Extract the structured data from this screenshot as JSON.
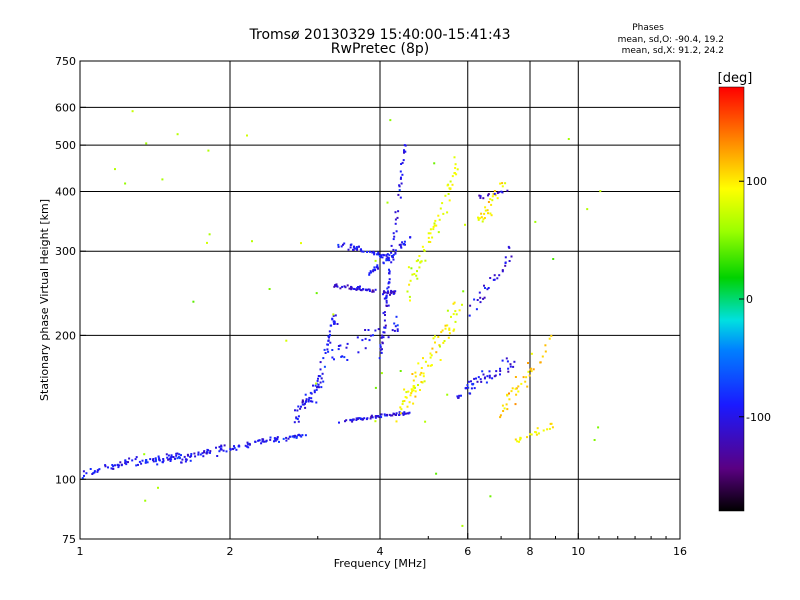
{
  "chart_data": {
    "type": "scatter",
    "title": "Tromsø 20130329 15:40:00-15:41:43",
    "subtitle": "RwPretec (8p)",
    "xlabel": "Frequency [MHz]",
    "ylabel": "Stationary phase Virtual Height [km]",
    "x_scale": "log",
    "y_scale": "log",
    "xlim": [
      1,
      16
    ],
    "ylim": [
      75,
      750
    ],
    "x_ticks": [
      1,
      2,
      4,
      6,
      8,
      10,
      16
    ],
    "y_ticks": [
      75,
      100,
      200,
      300,
      400,
      500,
      600,
      750
    ],
    "x_grid": [
      2,
      4,
      6,
      8,
      10
    ],
    "y_grid": [
      100,
      200,
      300,
      400,
      500,
      600
    ],
    "grid": true,
    "phases_box": {
      "title": "Phases",
      "line1": "mean, sd,O: -90.4, 19.2",
      "line2": "mean, sd,X:  91.2, 24.2"
    },
    "colorbar": {
      "label": "[deg]",
      "range": [
        -180,
        180
      ],
      "ticks": [
        100,
        0,
        -100
      ],
      "tick_labels": [
        "100",
        "0",
        "-100"
      ]
    },
    "series": [
      {
        "name": "O",
        "phase_mean": -90.4,
        "phase_sd": 19.2
      },
      {
        "name": "X",
        "phase_mean": 91.2,
        "phase_sd": 24.2
      }
    ],
    "traces": [
      {
        "f": [
          1.0,
          1.3
        ],
        "h": [
          102,
          110
        ],
        "phase": -95,
        "count": 40,
        "f_spread": 0.01,
        "h_spread": 0.025
      },
      {
        "f": [
          1.3,
          1.6
        ],
        "h": [
          108,
          112
        ],
        "phase": -90,
        "count": 50,
        "f_spread": 0.01,
        "h_spread": 0.025
      },
      {
        "f": [
          1.6,
          1.95
        ],
        "h": [
          110,
          116
        ],
        "phase": -100,
        "count": 40,
        "f_spread": 0.01,
        "h_spread": 0.03
      },
      {
        "f": [
          1.95,
          2.5
        ],
        "h": [
          115,
          122
        ],
        "phase": -95,
        "count": 45,
        "f_spread": 0.008,
        "h_spread": 0.02
      },
      {
        "f": [
          2.5,
          2.85
        ],
        "h": [
          120,
          125
        ],
        "phase": -90,
        "count": 20,
        "f_spread": 0.006,
        "h_spread": 0.015
      },
      {
        "f": [
          2.7,
          3.05
        ],
        "h": [
          135,
          160
        ],
        "phase": -100,
        "count": 45,
        "f_spread": 0.02,
        "h_spread": 0.06
      },
      {
        "f": [
          3.0,
          3.25
        ],
        "h": [
          160,
          220
        ],
        "phase": -95,
        "count": 35,
        "f_spread": 0.02,
        "h_spread": 0.06
      },
      {
        "f": [
          3.3,
          4.6
        ],
        "h": [
          132,
          138
        ],
        "phase": -100,
        "count": 60,
        "f_spread": 0.004,
        "h_spread": 0.012
      },
      {
        "f": [
          3.2,
          4.3
        ],
        "h": [
          255,
          245
        ],
        "phase": -110,
        "count": 60,
        "f_spread": 0.004,
        "h_spread": 0.015
      },
      {
        "f": [
          3.3,
          4.3
        ],
        "h": [
          310,
          290
        ],
        "phase": -95,
        "count": 50,
        "f_spread": 0.005,
        "h_spread": 0.02
      },
      {
        "f": [
          3.7,
          4.6
        ],
        "h": [
          260,
          320
        ],
        "phase": -90,
        "count": 40,
        "f_spread": 0.005,
        "h_spread": 0.02
      },
      {
        "f": [
          3.2,
          4.4
        ],
        "h": [
          180,
          210
        ],
        "phase": -95,
        "count": 40,
        "f_spread": 0.03,
        "h_spread": 0.08
      },
      {
        "f": [
          4.0,
          4.5
        ],
        "h": [
          180,
          520
        ],
        "phase": -100,
        "count": 70,
        "f_spread": 0.012,
        "h_spread": 0.05
      },
      {
        "f": [
          4.4,
          5.8
        ],
        "h": [
          140,
          230
        ],
        "phase": 95,
        "count": 80,
        "f_spread": 0.03,
        "h_spread": 0.1
      },
      {
        "f": [
          4.5,
          5.8
        ],
        "h": [
          240,
          460
        ],
        "phase": 85,
        "count": 60,
        "f_spread": 0.025,
        "h_spread": 0.1
      },
      {
        "f": [
          5.7,
          7.4
        ],
        "h": [
          150,
          175
        ],
        "phase": -100,
        "count": 50,
        "f_spread": 0.02,
        "h_spread": 0.06
      },
      {
        "f": [
          6.2,
          7.2
        ],
        "h": [
          340,
          420
        ],
        "phase": 95,
        "count": 30,
        "f_spread": 0.02,
        "h_spread": 0.07
      },
      {
        "f": [
          6.3,
          7.2
        ],
        "h": [
          390,
          400
        ],
        "phase": -120,
        "count": 12,
        "f_spread": 0.01,
        "h_spread": 0.02
      },
      {
        "f": [
          7.0,
          8.8
        ],
        "h": [
          140,
          195
        ],
        "phase": 110,
        "count": 40,
        "f_spread": 0.02,
        "h_spread": 0.08
      },
      {
        "f": [
          6.0,
          7.4
        ],
        "h": [
          220,
          300
        ],
        "phase": -105,
        "count": 30,
        "f_spread": 0.02,
        "h_spread": 0.07
      },
      {
        "f": [
          7.5,
          8.9
        ],
        "h": [
          120,
          130
        ],
        "phase": 100,
        "count": 20,
        "f_spread": 0.015,
        "h_spread": 0.02
      },
      {
        "f": [
          1.2,
          12.0
        ],
        "h": [
          80,
          640
        ],
        "phase": 60,
        "count": 45,
        "f_spread": 0.1,
        "h_spread": 0.2
      }
    ]
  }
}
